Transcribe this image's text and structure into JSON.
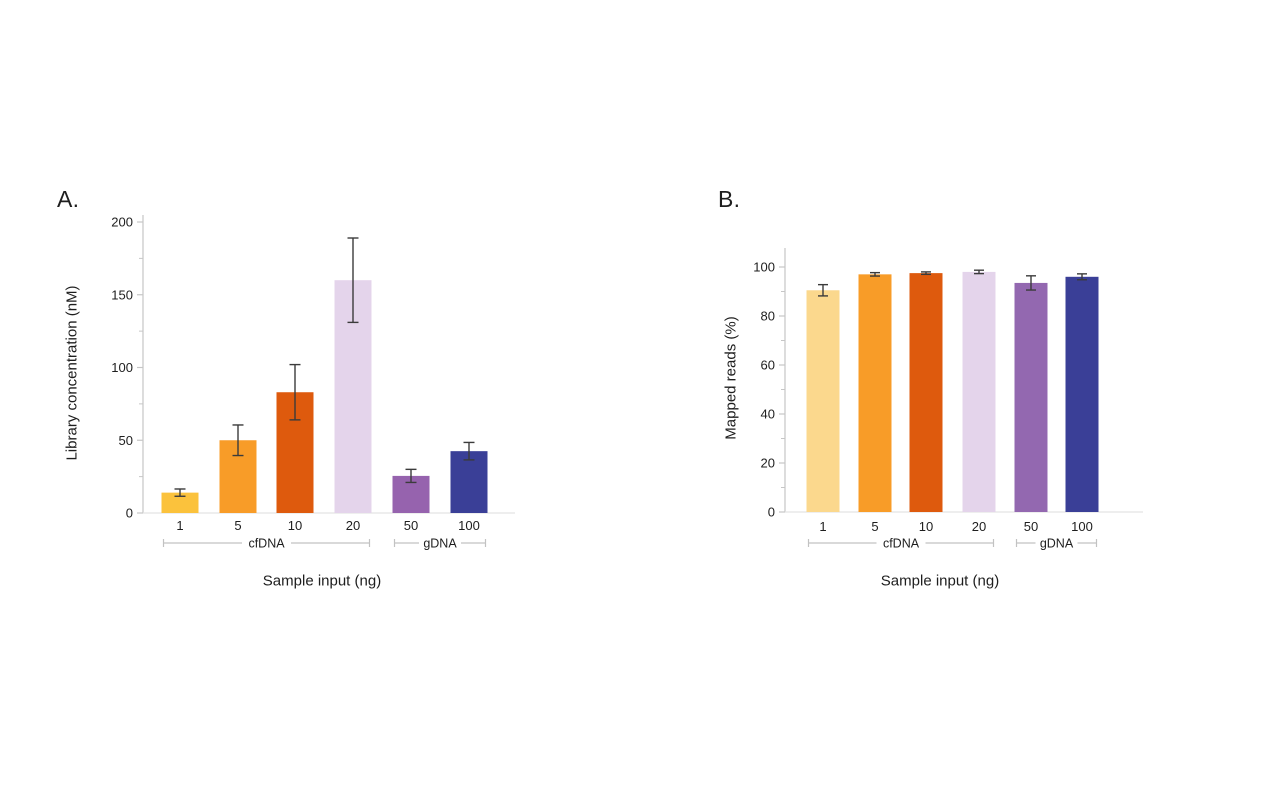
{
  "styles": {
    "background": "#ffffff",
    "text_color": "#1e1e1e",
    "axis_color": "#c6c6c6",
    "baseline_color": "#e3e3e3",
    "bracket_color": "#c2c2c2",
    "error_bar_color": "#3b3b3b"
  },
  "chart_data": [
    {
      "type": "bar",
      "panel_label": "A.",
      "title": "",
      "xlabel": "Sample input (ng)",
      "ylabel": "Library concentration (nM)",
      "categories": [
        "1",
        "5",
        "10",
        "20",
        "50",
        "100"
      ],
      "values": [
        14,
        50,
        83,
        160,
        25.5,
        42.5
      ],
      "errors": [
        2.5,
        10.5,
        19,
        29,
        4.5,
        6
      ],
      "bar_colors": [
        "#FBC23C",
        "#F89C28",
        "#DE5A0D",
        "#E4D4EB",
        "#9663AE",
        "#3A3F97"
      ],
      "groups": [
        {
          "label": "cfDNA",
          "from_index": 0,
          "to_index": 3
        },
        {
          "label": "gDNA",
          "from_index": 4,
          "to_index": 5
        }
      ],
      "y_axis": {
        "ticks": [
          0,
          50,
          100,
          150,
          200
        ],
        "minor_step": 25,
        "ylim": [
          0,
          205
        ]
      },
      "legend": null,
      "grid": false
    },
    {
      "type": "bar",
      "panel_label": "B.",
      "title": "",
      "xlabel": "Sample input (ng)",
      "ylabel": "Mapped reads (%)",
      "categories": [
        "1",
        "5",
        "10",
        "20",
        "50",
        "100"
      ],
      "values": [
        90.5,
        97,
        97.5,
        98,
        93.5,
        96
      ],
      "errors": [
        2.3,
        0.7,
        0.5,
        0.7,
        2.9,
        1.2
      ],
      "bar_colors": [
        "#FBD88D",
        "#F89C28",
        "#DE5A0D",
        "#E4D4EB",
        "#9368B0",
        "#3A3F97"
      ],
      "groups": [
        {
          "label": "cfDNA",
          "from_index": 0,
          "to_index": 3
        },
        {
          "label": "gDNA",
          "from_index": 4,
          "to_index": 5
        }
      ],
      "y_axis": {
        "ticks": [
          0,
          20,
          40,
          60,
          80,
          100
        ],
        "minor_step": 10,
        "ylim": [
          0,
          108
        ]
      },
      "legend": null,
      "grid": false
    }
  ]
}
